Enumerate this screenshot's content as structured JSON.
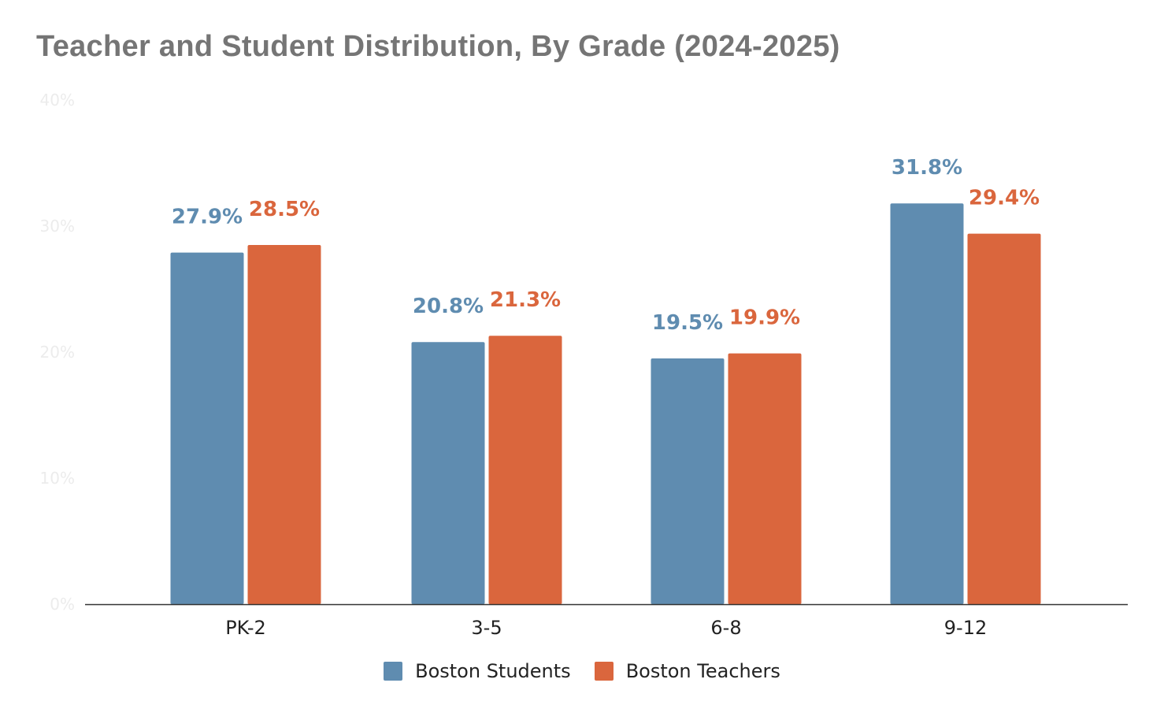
{
  "chart_data": {
    "type": "bar",
    "title": "Teacher and Student Distribution, By Grade (2024-2025)",
    "categories": [
      "PK-2",
      "3-5",
      "6-8",
      "9-12"
    ],
    "series": [
      {
        "name": "Boston Students",
        "color": "#5f8cb0",
        "values": [
          27.9,
          20.8,
          19.5,
          31.8
        ],
        "labels": [
          "27.9%",
          "20.8%",
          "19.5%",
          "31.8%"
        ]
      },
      {
        "name": "Boston Teachers",
        "color": "#da663d",
        "values": [
          28.5,
          21.3,
          19.9,
          29.4
        ],
        "labels": [
          "28.5%",
          "21.3%",
          "19.9%",
          "29.4%"
        ]
      }
    ],
    "y_ticks": [
      "0%",
      "10%",
      "20%",
      "30%",
      "40%"
    ],
    "ylim": [
      0,
      40
    ],
    "xlabel": "",
    "ylabel": "",
    "grid": false,
    "legend_position": "bottom"
  }
}
